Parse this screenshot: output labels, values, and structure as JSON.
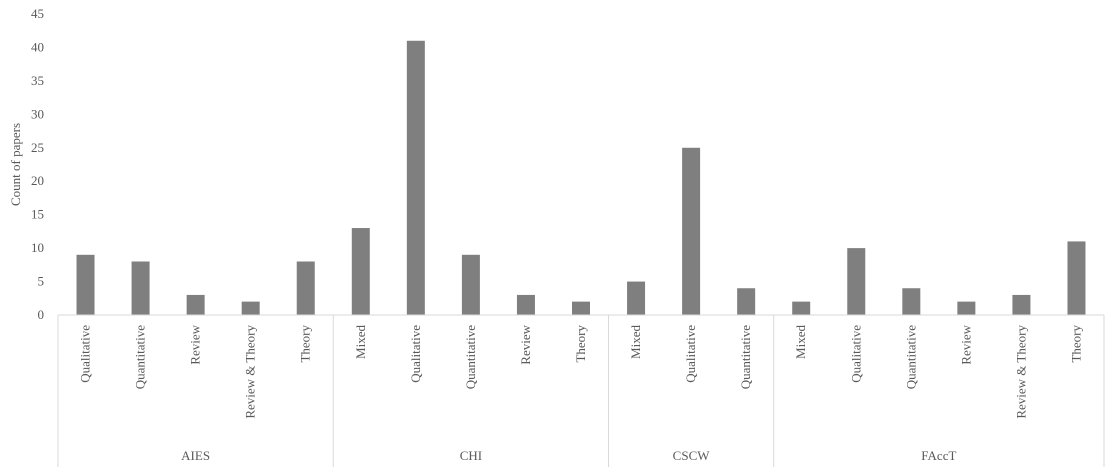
{
  "chart_data": {
    "type": "bar",
    "ylabel": "Count of papers",
    "ylim": [
      0,
      45
    ],
    "yticks": [
      0,
      5,
      10,
      15,
      20,
      25,
      30,
      35,
      40,
      45
    ],
    "grid": false,
    "legend": "none",
    "bar_color": "#7f7f7f",
    "groups": [
      {
        "name": "AIES",
        "categories": [
          "Qualitative",
          "Quantitative",
          "Review",
          "Review & Theory",
          "Theory"
        ],
        "values": [
          9,
          8,
          3,
          2,
          8
        ]
      },
      {
        "name": "CHI",
        "categories": [
          "Mixed",
          "Qualitative",
          "Quantitative",
          "Review",
          "Theory"
        ],
        "values": [
          13,
          41,
          9,
          3,
          2
        ]
      },
      {
        "name": "CSCW",
        "categories": [
          "Mixed",
          "Qualitative",
          "Quantitative"
        ],
        "values": [
          5,
          25,
          4
        ]
      },
      {
        "name": "FAccT",
        "categories": [
          "Mixed",
          "Qualitative",
          "Quantitative",
          "Review",
          "Review & Theory",
          "Theory"
        ],
        "values": [
          2,
          10,
          4,
          2,
          3,
          11
        ]
      }
    ]
  }
}
